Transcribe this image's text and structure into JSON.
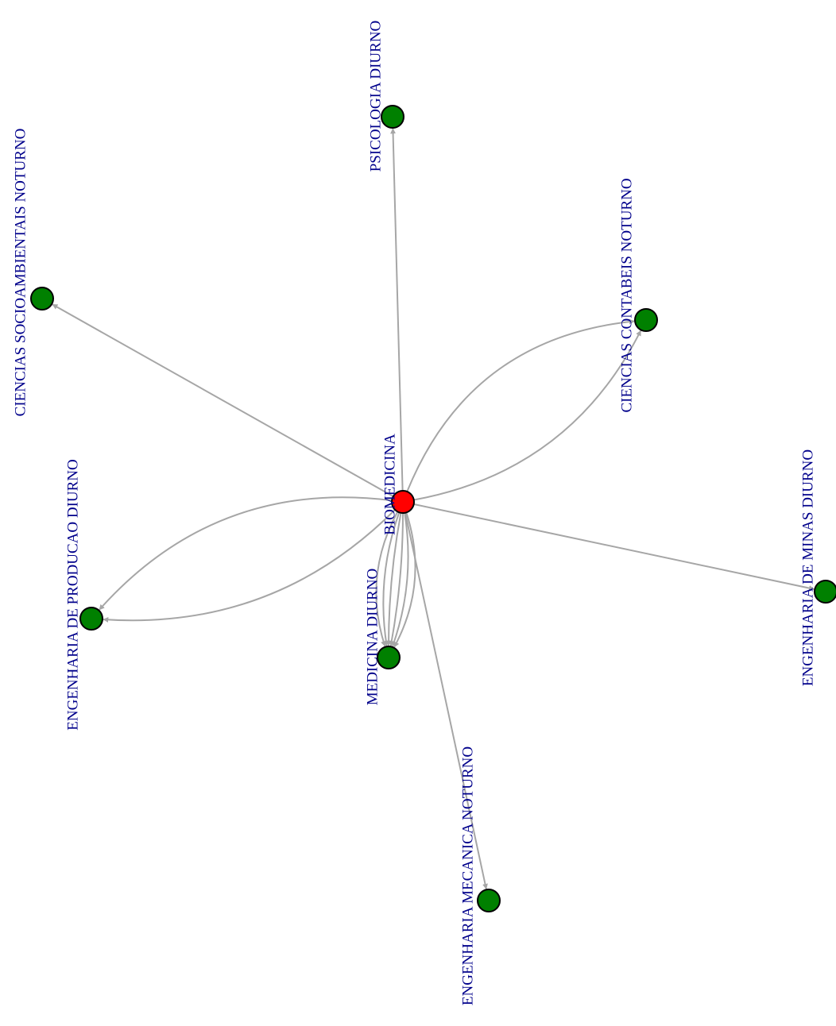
{
  "colors": {
    "edge": "#a6a6a6",
    "label": "#00008b",
    "source_node": "#ff0000",
    "target_node": "#008000",
    "node_border": "#000000"
  },
  "nodes": [
    {
      "id": "biomedicina",
      "label": "BIOMEDICINA",
      "role": "source"
    },
    {
      "id": "psicologia",
      "label": "PSICOLOGIA DIURNO",
      "role": "target"
    },
    {
      "id": "socioambientais",
      "label": "CIENCIAS SOCIOAMBIENTAIS NOTURNO",
      "role": "target"
    },
    {
      "id": "contabeis",
      "label": "CIENCIAS CONTABEIS NOTURNO",
      "role": "target"
    },
    {
      "id": "producao",
      "label": "ENGENHARIA DE PRODUCAO DIURNO",
      "role": "target"
    },
    {
      "id": "minas",
      "label": "ENGENHARIA DE MINAS DIURNO",
      "role": "target"
    },
    {
      "id": "medicina",
      "label": "MEDICINA DIURNO",
      "role": "target"
    },
    {
      "id": "mecanica",
      "label": "ENGENHARIA MECANICA NOTURNO",
      "role": "target"
    }
  ],
  "edges": [
    {
      "from": "biomedicina",
      "to": "psicologia",
      "count": 1
    },
    {
      "from": "biomedicina",
      "to": "socioambientais",
      "count": 1
    },
    {
      "from": "biomedicina",
      "to": "contabeis",
      "count": 2
    },
    {
      "from": "biomedicina",
      "to": "producao",
      "count": 2
    },
    {
      "from": "biomedicina",
      "to": "minas",
      "count": 1
    },
    {
      "from": "biomedicina",
      "to": "medicina",
      "count": 6
    },
    {
      "from": "biomedicina",
      "to": "mecanica",
      "count": 1
    }
  ]
}
